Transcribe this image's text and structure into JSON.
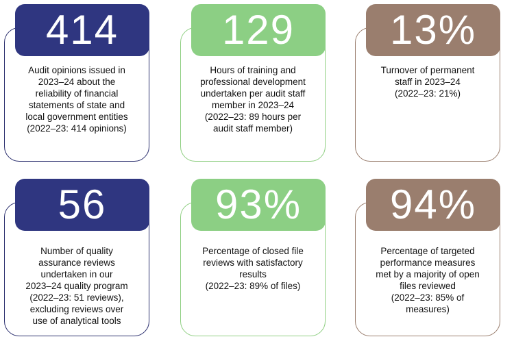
{
  "stats": [
    {
      "value": "414",
      "lines": [
        "Audit opinions issued in",
        "2023–24 about the",
        "reliability of financial",
        "statements of state and",
        "local government entities",
        "(2022–23: 414 opinions)"
      ],
      "theme": "navy"
    },
    {
      "value": "129",
      "lines": [
        "Hours of training and",
        "professional development",
        "undertaken per audit staff",
        "member in 2023–24",
        "(2022–23: 89 hours per",
        "audit staff member)"
      ],
      "theme": "green"
    },
    {
      "value": "13%",
      "lines": [
        "Turnover of permanent",
        "staff in 2023–24",
        "(2022–23: 21%)"
      ],
      "theme": "brown"
    },
    {
      "value": "56",
      "lines": [
        "Number of quality",
        "assurance reviews",
        "undertaken in our",
        "2023–24 quality program",
        "(2022–23: 51 reviews),",
        "excluding reviews over",
        "use of analytical tools"
      ],
      "theme": "navy"
    },
    {
      "value": "93%",
      "lines": [
        "Percentage of closed file",
        "reviews with satisfactory",
        "results",
        "(2022–23: 89% of files)"
      ],
      "theme": "green"
    },
    {
      "value": "94%",
      "lines": [
        "Percentage of targeted",
        "performance measures",
        "met by a majority of open",
        "files reviewed",
        "(2022–23: 85% of",
        "measures)"
      ],
      "theme": "brown"
    }
  ],
  "colors": {
    "navy": "#2f3680",
    "green": "#8ccf84",
    "brown": "#9a7e6e"
  }
}
